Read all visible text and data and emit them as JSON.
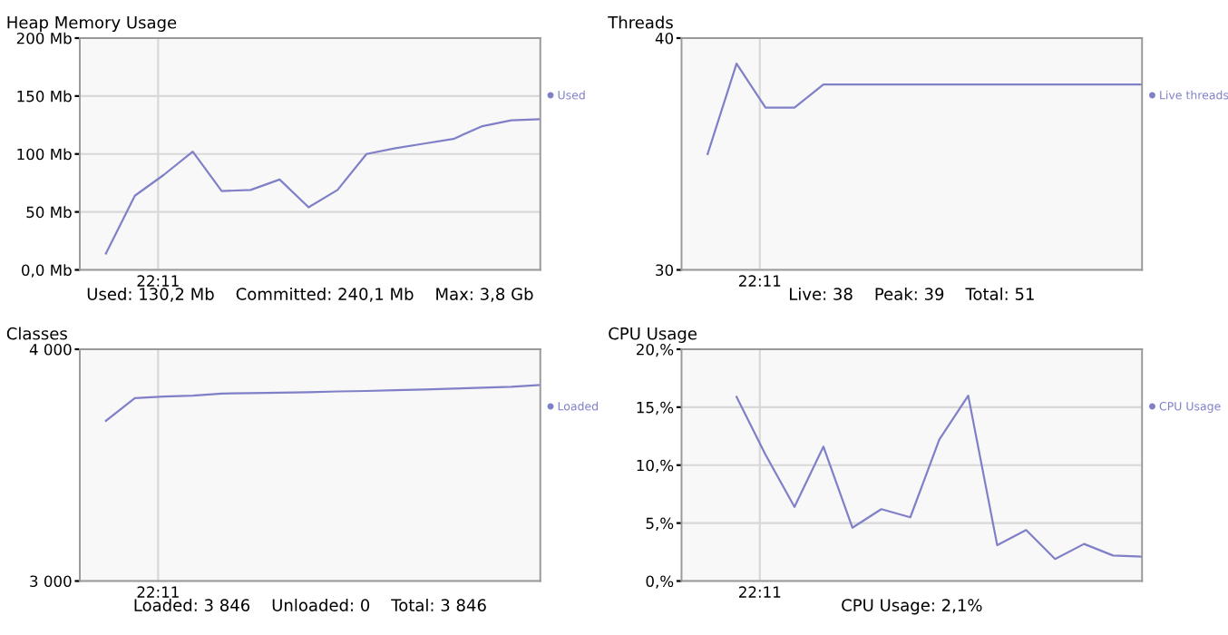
{
  "chart_data": [
    {
      "type": "line",
      "title": "Heap Memory Usage",
      "xlabel": "Used: 130,2 Mb    Committed: 240,1 Mb    Max: 3,8 Gb",
      "annotations": [
        "22:11"
      ],
      "legend": "right",
      "grid": true,
      "marker": "none",
      "line_style": "solid",
      "categories": [
        null,
        null,
        null,
        null,
        null,
        null,
        null,
        null,
        null,
        null,
        null,
        null,
        null,
        null,
        null,
        null
      ],
      "ylim": [
        0,
        200
      ],
      "yticks": [
        {
          "value": 0,
          "label": "0,0 Mb"
        },
        {
          "value": 50,
          "label": "50 Mb"
        },
        {
          "value": 100,
          "label": "100 Mb"
        },
        {
          "value": 150,
          "label": "150 Mb"
        },
        {
          "value": 200,
          "label": "200 Mb"
        }
      ],
      "series": [
        {
          "name": "Used",
          "color": "#8080c8",
          "values": [
            14,
            64,
            82,
            102,
            68,
            69,
            78,
            54,
            69,
            100,
            105,
            109,
            113,
            124,
            129,
            130
          ]
        }
      ]
    },
    {
      "type": "line",
      "title": "Threads",
      "xlabel": "Live: 38    Peak: 39    Total: 51",
      "annotations": [
        "22:11"
      ],
      "legend": "right",
      "grid": true,
      "marker": "none",
      "line_style": "solid",
      "categories": [
        null,
        null,
        null,
        null,
        null,
        null,
        null,
        null,
        null,
        null,
        null,
        null,
        null,
        null,
        null,
        null
      ],
      "ylim": [
        30,
        40
      ],
      "yticks": [
        {
          "value": 30,
          "label": "30"
        },
        {
          "value": 40,
          "label": "40"
        }
      ],
      "series": [
        {
          "name": "Live threads",
          "color": "#8080c8",
          "values": [
            35,
            38.9,
            37,
            37,
            38,
            38,
            38,
            38,
            38,
            38,
            38,
            38,
            38,
            38,
            38,
            38
          ]
        }
      ]
    },
    {
      "type": "line",
      "title": "Classes",
      "xlabel": "Loaded: 3 846    Unloaded: 0    Total: 3 846",
      "annotations": [
        "22:11"
      ],
      "legend": "right",
      "grid": true,
      "marker": "none",
      "line_style": "solid",
      "categories": [
        null,
        null,
        null,
        null,
        null,
        null,
        null,
        null,
        null,
        null,
        null,
        null,
        null,
        null,
        null,
        null
      ],
      "ylim": [
        3000,
        4000
      ],
      "yticks": [
        {
          "value": 3000,
          "label": "3 000"
        },
        {
          "value": 4000,
          "label": "4 000"
        }
      ],
      "series": [
        {
          "name": "Loaded",
          "color": "#8080c8",
          "values": [
            3691,
            3789,
            3796,
            3800,
            3809,
            3811,
            3813,
            3815,
            3818,
            3820,
            3823,
            3826,
            3830,
            3834,
            3838,
            3846
          ]
        }
      ]
    },
    {
      "type": "line",
      "title": "CPU Usage",
      "xlabel": "CPU Usage: 2,1%",
      "annotations": [
        "22:11"
      ],
      "legend": "right",
      "grid": true,
      "marker": "none",
      "line_style": "solid",
      "categories": [
        null,
        null,
        null,
        null,
        null,
        null,
        null,
        null,
        null,
        null,
        null,
        null,
        null,
        null,
        null,
        null
      ],
      "ylim": [
        0,
        20
      ],
      "yticks": [
        {
          "value": 0,
          "label": "0,%"
        },
        {
          "value": 5,
          "label": "5,%"
        },
        {
          "value": 10,
          "label": "10,%"
        },
        {
          "value": 15,
          "label": "15,%"
        },
        {
          "value": 20,
          "label": "20,%"
        }
      ],
      "series": [
        {
          "name": "CPU Usage",
          "color": "#8080c8",
          "values": [
            null,
            15.9,
            10.9,
            6.4,
            11.6,
            4.6,
            6.2,
            5.5,
            12.2,
            16.0,
            3.1,
            4.4,
            1.9,
            3.2,
            2.2,
            2.1
          ]
        }
      ]
    }
  ]
}
